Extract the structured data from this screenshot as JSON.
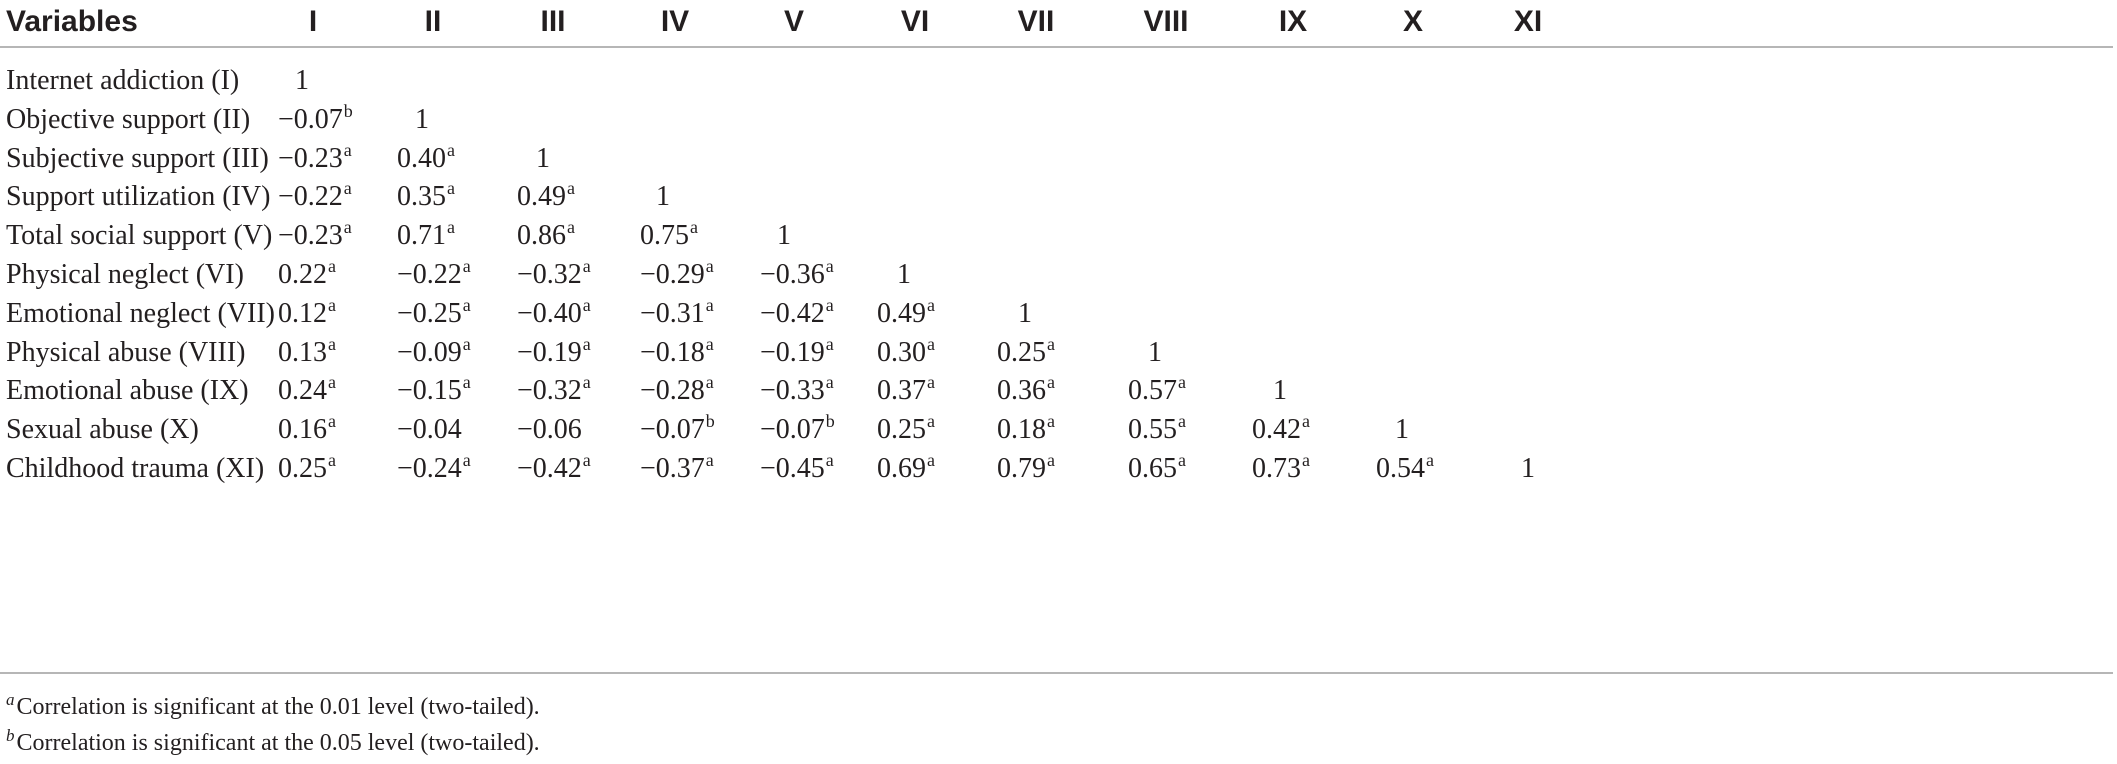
{
  "table": {
    "header": {
      "variable_label": "Variables",
      "columns": [
        "I",
        "II",
        "III",
        "IV",
        "V",
        "VI",
        "VII",
        "VIII",
        "IX",
        "X",
        "XI"
      ]
    },
    "rows": [
      {
        "label": "Internet addiction (I)",
        "cells": [
          {
            "v": "1",
            "sup": ""
          }
        ]
      },
      {
        "label": "Objective support (II)",
        "cells": [
          {
            "v": "−0.07",
            "sup": "b"
          },
          {
            "v": "1",
            "sup": ""
          }
        ]
      },
      {
        "label": "Subjective support (III)",
        "cells": [
          {
            "v": "−0.23",
            "sup": "a"
          },
          {
            "v": "0.40",
            "sup": "a"
          },
          {
            "v": "1",
            "sup": ""
          }
        ]
      },
      {
        "label": "Support utilization (IV)",
        "cells": [
          {
            "v": "−0.22",
            "sup": "a"
          },
          {
            "v": "0.35",
            "sup": "a"
          },
          {
            "v": "0.49",
            "sup": "a"
          },
          {
            "v": "1",
            "sup": ""
          }
        ]
      },
      {
        "label": "Total social support (V)",
        "cells": [
          {
            "v": "−0.23",
            "sup": "a"
          },
          {
            "v": "0.71",
            "sup": "a"
          },
          {
            "v": "0.86",
            "sup": "a"
          },
          {
            "v": "0.75",
            "sup": "a"
          },
          {
            "v": "1",
            "sup": ""
          }
        ]
      },
      {
        "label": "Physical neglect (VI)",
        "cells": [
          {
            "v": "0.22",
            "sup": "a"
          },
          {
            "v": "−0.22",
            "sup": "a"
          },
          {
            "v": "−0.32",
            "sup": "a"
          },
          {
            "v": "−0.29",
            "sup": "a"
          },
          {
            "v": "−0.36",
            "sup": "a"
          },
          {
            "v": "1",
            "sup": ""
          }
        ]
      },
      {
        "label": "Emotional neglect (VII)",
        "cells": [
          {
            "v": "0.12",
            "sup": "a"
          },
          {
            "v": "−0.25",
            "sup": "a"
          },
          {
            "v": "−0.40",
            "sup": "a"
          },
          {
            "v": "−0.31",
            "sup": "a"
          },
          {
            "v": "−0.42",
            "sup": "a"
          },
          {
            "v": "0.49",
            "sup": "a"
          },
          {
            "v": "1",
            "sup": ""
          }
        ]
      },
      {
        "label": "Physical abuse (VIII)",
        "cells": [
          {
            "v": "0.13",
            "sup": "a"
          },
          {
            "v": "−0.09",
            "sup": "a"
          },
          {
            "v": "−0.19",
            "sup": "a"
          },
          {
            "v": "−0.18",
            "sup": "a"
          },
          {
            "v": "−0.19",
            "sup": "a"
          },
          {
            "v": "0.30",
            "sup": "a"
          },
          {
            "v": "0.25",
            "sup": "a"
          },
          {
            "v": "1",
            "sup": ""
          }
        ]
      },
      {
        "label": "Emotional abuse (IX)",
        "cells": [
          {
            "v": "0.24",
            "sup": "a"
          },
          {
            "v": "−0.15",
            "sup": "a"
          },
          {
            "v": "−0.32",
            "sup": "a"
          },
          {
            "v": "−0.28",
            "sup": "a"
          },
          {
            "v": "−0.33",
            "sup": "a"
          },
          {
            "v": "0.37",
            "sup": "a"
          },
          {
            "v": "0.36",
            "sup": "a"
          },
          {
            "v": "0.57",
            "sup": "a"
          },
          {
            "v": "1",
            "sup": ""
          }
        ]
      },
      {
        "label": "Sexual abuse (X)",
        "cells": [
          {
            "v": "0.16",
            "sup": "a"
          },
          {
            "v": "−0.04",
            "sup": ""
          },
          {
            "v": "−0.06",
            "sup": ""
          },
          {
            "v": "−0.07",
            "sup": "b"
          },
          {
            "v": "−0.07",
            "sup": "b"
          },
          {
            "v": "0.25",
            "sup": "a"
          },
          {
            "v": "0.18",
            "sup": "a"
          },
          {
            "v": "0.55",
            "sup": "a"
          },
          {
            "v": "0.42",
            "sup": "a"
          },
          {
            "v": "1",
            "sup": ""
          }
        ]
      },
      {
        "label": "Childhood trauma (XI)",
        "cells": [
          {
            "v": "0.25",
            "sup": "a"
          },
          {
            "v": "−0.24",
            "sup": "a"
          },
          {
            "v": "−0.42",
            "sup": "a"
          },
          {
            "v": "−0.37",
            "sup": "a"
          },
          {
            "v": "−0.45",
            "sup": "a"
          },
          {
            "v": "0.69",
            "sup": "a"
          },
          {
            "v": "0.79",
            "sup": "a"
          },
          {
            "v": "0.65",
            "sup": "a"
          },
          {
            "v": "0.73",
            "sup": "a"
          },
          {
            "v": "0.54",
            "sup": "a"
          },
          {
            "v": "1",
            "sup": ""
          }
        ]
      }
    ]
  },
  "footnotes": [
    {
      "marker": "a",
      "text": "Correlation is significant at the 0.01 level (two-tailed)."
    },
    {
      "marker": "b",
      "text": "Correlation is significant at the 0.05 level (two-tailed)."
    }
  ]
}
